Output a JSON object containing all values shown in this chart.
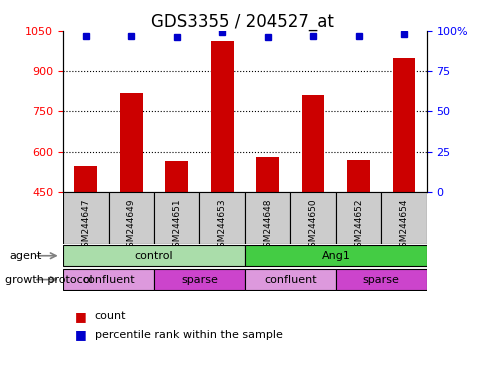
{
  "title": "GDS3355 / 204527_at",
  "samples": [
    "GSM244647",
    "GSM244649",
    "GSM244651",
    "GSM244653",
    "GSM244648",
    "GSM244650",
    "GSM244652",
    "GSM244654"
  ],
  "bar_values": [
    545,
    820,
    565,
    1010,
    580,
    810,
    570,
    950
  ],
  "percentile_values": [
    97,
    97,
    96,
    99,
    96,
    97,
    97,
    98
  ],
  "ylim_left": [
    450,
    1050
  ],
  "ylim_right": [
    0,
    100
  ],
  "yticks_left": [
    450,
    600,
    750,
    900,
    1050
  ],
  "yticks_right": [
    0,
    25,
    50,
    75,
    100
  ],
  "ytick_labels_right": [
    "0",
    "25",
    "50",
    "75",
    "100%"
  ],
  "bar_color": "#cc0000",
  "dot_color": "#0000cc",
  "agent_groups": [
    {
      "label": "control",
      "start": 0,
      "end": 4,
      "color": "#aaddaa"
    },
    {
      "label": "Ang1",
      "start": 4,
      "end": 8,
      "color": "#44cc44"
    }
  ],
  "protocol_groups": [
    {
      "label": "confluent",
      "start": 0,
      "end": 2,
      "color": "#dd99dd"
    },
    {
      "label": "sparse",
      "start": 2,
      "end": 4,
      "color": "#cc44cc"
    },
    {
      "label": "confluent",
      "start": 4,
      "end": 6,
      "color": "#dd99dd"
    },
    {
      "label": "sparse",
      "start": 6,
      "end": 8,
      "color": "#cc44cc"
    }
  ],
  "agent_label": "agent",
  "protocol_label": "growth protocol",
  "legend_items": [
    {
      "label": "count",
      "color": "#cc0000"
    },
    {
      "label": "percentile rank within the sample",
      "color": "#0000cc"
    }
  ],
  "sample_box_color": "#cccccc",
  "title_fontsize": 12,
  "tick_fontsize": 8,
  "label_fontsize": 8,
  "group_fontsize": 8
}
